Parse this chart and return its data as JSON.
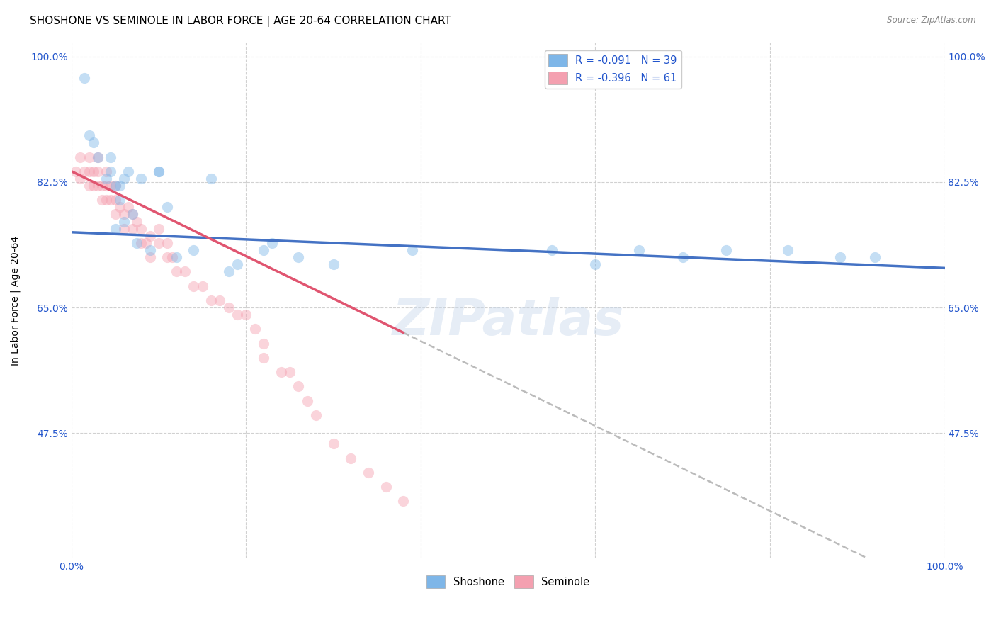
{
  "title": "SHOSHONE VS SEMINOLE IN LABOR FORCE | AGE 20-64 CORRELATION CHART",
  "source": "Source: ZipAtlas.com",
  "ylabel": "In Labor Force | Age 20-64",
  "watermark": "ZIPatlas",
  "legend_shoshone": "R = -0.091   N = 39",
  "legend_seminole": "R = -0.396   N = 61",
  "shoshone_color": "#7EB6E8",
  "seminole_color": "#F4A0B0",
  "trendline_shoshone_color": "#4472C4",
  "trendline_seminole_color": "#E05570",
  "trendline_dashed_color": "#BBBBBB",
  "xmin": 0.0,
  "xmax": 1.0,
  "ymin": 0.3,
  "ymax": 1.02,
  "yticks": [
    0.475,
    0.65,
    0.825,
    1.0
  ],
  "ytick_labels": [
    "47.5%",
    "65.0%",
    "82.5%",
    "100.0%"
  ],
  "title_fontsize": 11,
  "axis_label_fontsize": 10,
  "tick_fontsize": 10,
  "marker_size": 120,
  "marker_alpha": 0.45,
  "shoshone_R": -0.091,
  "seminole_R": -0.396,
  "shoshone_x": [
    0.015,
    0.02,
    0.025,
    0.03,
    0.04,
    0.045,
    0.045,
    0.05,
    0.05,
    0.055,
    0.055,
    0.06,
    0.06,
    0.065,
    0.07,
    0.075,
    0.08,
    0.09,
    0.1,
    0.1,
    0.11,
    0.12,
    0.14,
    0.16,
    0.18,
    0.19,
    0.22,
    0.23,
    0.26,
    0.3,
    0.39,
    0.55,
    0.6,
    0.65,
    0.7,
    0.75,
    0.82,
    0.88,
    0.92
  ],
  "shoshone_y": [
    0.97,
    0.89,
    0.88,
    0.86,
    0.83,
    0.84,
    0.86,
    0.76,
    0.82,
    0.8,
    0.82,
    0.77,
    0.83,
    0.84,
    0.78,
    0.74,
    0.83,
    0.73,
    0.84,
    0.84,
    0.79,
    0.72,
    0.73,
    0.83,
    0.7,
    0.71,
    0.73,
    0.74,
    0.72,
    0.71,
    0.73,
    0.73,
    0.71,
    0.73,
    0.72,
    0.73,
    0.73,
    0.72,
    0.72
  ],
  "seminole_x": [
    0.005,
    0.01,
    0.01,
    0.015,
    0.02,
    0.02,
    0.02,
    0.025,
    0.025,
    0.03,
    0.03,
    0.03,
    0.035,
    0.035,
    0.04,
    0.04,
    0.04,
    0.045,
    0.045,
    0.05,
    0.05,
    0.05,
    0.055,
    0.06,
    0.06,
    0.065,
    0.07,
    0.07,
    0.075,
    0.08,
    0.08,
    0.085,
    0.09,
    0.09,
    0.1,
    0.1,
    0.11,
    0.11,
    0.115,
    0.12,
    0.13,
    0.14,
    0.15,
    0.16,
    0.17,
    0.18,
    0.19,
    0.2,
    0.21,
    0.22,
    0.22,
    0.24,
    0.25,
    0.26,
    0.27,
    0.28,
    0.3,
    0.32,
    0.34,
    0.36,
    0.38
  ],
  "seminole_y": [
    0.84,
    0.83,
    0.86,
    0.84,
    0.84,
    0.82,
    0.86,
    0.82,
    0.84,
    0.82,
    0.84,
    0.86,
    0.8,
    0.82,
    0.82,
    0.84,
    0.8,
    0.8,
    0.82,
    0.78,
    0.8,
    0.82,
    0.79,
    0.76,
    0.78,
    0.79,
    0.76,
    0.78,
    0.77,
    0.74,
    0.76,
    0.74,
    0.72,
    0.75,
    0.74,
    0.76,
    0.72,
    0.74,
    0.72,
    0.7,
    0.7,
    0.68,
    0.68,
    0.66,
    0.66,
    0.65,
    0.64,
    0.64,
    0.62,
    0.6,
    0.58,
    0.56,
    0.56,
    0.54,
    0.52,
    0.5,
    0.46,
    0.44,
    0.42,
    0.4,
    0.38
  ],
  "trendline_solid_end": 0.38,
  "shoshone_trend_x0": 0.0,
  "shoshone_trend_x1": 1.0,
  "shoshone_trend_y0": 0.755,
  "shoshone_trend_y1": 0.705,
  "seminole_trend_x0": 0.0,
  "seminole_trend_x1": 0.38,
  "seminole_trend_y0": 0.84,
  "seminole_trend_y1": 0.615
}
